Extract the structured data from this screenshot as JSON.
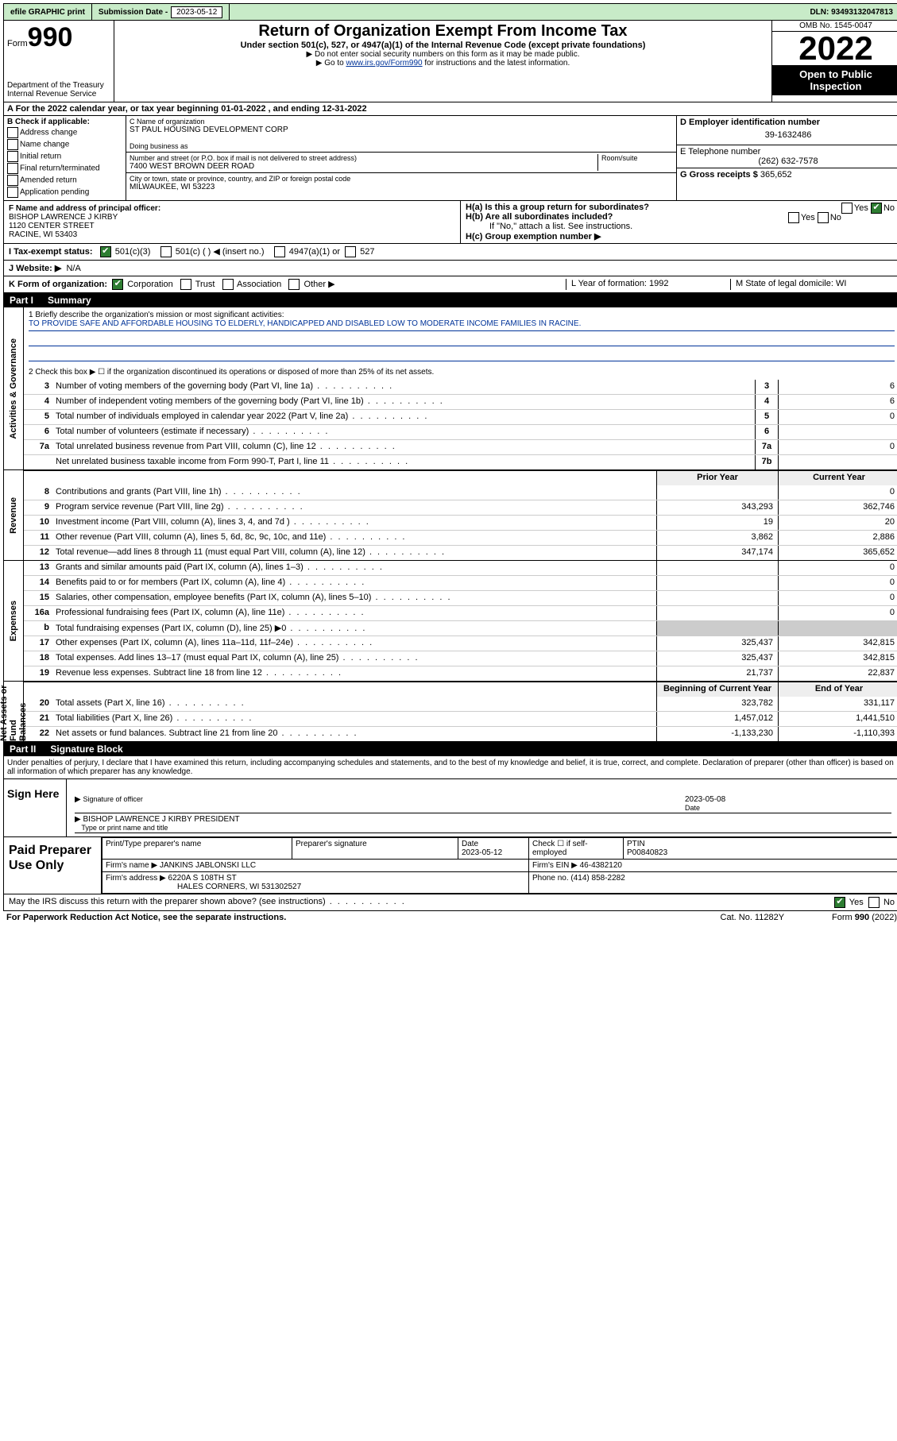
{
  "topbar": {
    "efile": "efile GRAPHIC print",
    "submission_label": "Submission Date - ",
    "submission_date": "2023-05-12",
    "dln_label": "DLN: ",
    "dln": "93493132047813"
  },
  "header": {
    "form_word": "Form",
    "form_num": "990",
    "title": "Return of Organization Exempt From Income Tax",
    "subtitle": "Under section 501(c), 527, or 4947(a)(1) of the Internal Revenue Code (except private foundations)",
    "note1": "▶ Do not enter social security numbers on this form as it may be made public.",
    "note2_pre": "▶ Go to ",
    "note2_link": "www.irs.gov/Form990",
    "note2_post": " for instructions and the latest information.",
    "dept": "Department of the Treasury",
    "irs": "Internal Revenue Service",
    "omb": "OMB No. 1545-0047",
    "year": "2022",
    "open": "Open to Public Inspection"
  },
  "rowA": {
    "label": "A For the 2022 calendar year, or tax year beginning ",
    "begin": "01-01-2022",
    "mid": "  , and ending ",
    "end": "12-31-2022"
  },
  "B": {
    "label": "B Check if applicable:",
    "items": [
      "Address change",
      "Name change",
      "Initial return",
      "Final return/terminated",
      "Amended return",
      "Application pending"
    ]
  },
  "C": {
    "name_label": "C Name of organization",
    "name": "ST PAUL HOUSING DEVELOPMENT CORP",
    "dba_label": "Doing business as",
    "street_label": "Number and street (or P.O. box if mail is not delivered to street address)",
    "room_label": "Room/suite",
    "street": "7400 WEST BROWN DEER ROAD",
    "city_label": "City or town, state or province, country, and ZIP or foreign postal code",
    "city": "MILWAUKEE, WI  53223"
  },
  "D": {
    "label": "D Employer identification number",
    "value": "39-1632486"
  },
  "E": {
    "label": "E Telephone number",
    "value": "(262) 632-7578"
  },
  "G": {
    "label": "G Gross receipts $",
    "value": "365,652"
  },
  "F": {
    "label": "F  Name and address of principal officer:",
    "name": "BISHOP LAWRENCE J KIRBY",
    "street": "1120 CENTER STREET",
    "city": "RACINE, WI  53403"
  },
  "H": {
    "a_label": "H(a)  Is this a group return for subordinates?",
    "a_yes": "Yes",
    "a_no": "No",
    "b_label": "H(b)  Are all subordinates included?",
    "b_note": "If \"No,\" attach a list. See instructions.",
    "c_label": "H(c)  Group exemption number ▶"
  },
  "I": {
    "label": "I   Tax-exempt status:",
    "opt1": "501(c)(3)",
    "opt2": "501(c) (   ) ◀ (insert no.)",
    "opt3": "4947(a)(1) or",
    "opt4": "527"
  },
  "J": {
    "label": "J   Website: ▶",
    "value": "N/A"
  },
  "K": {
    "label": "K Form of organization:",
    "opts": [
      "Corporation",
      "Trust",
      "Association",
      "Other ▶"
    ],
    "L": "L Year of formation: 1992",
    "M": "M State of legal domicile: WI"
  },
  "partI": {
    "tag": "Part I",
    "title": "Summary"
  },
  "summary": {
    "line1_label": "1  Briefly describe the organization's mission or most significant activities:",
    "mission": "TO PROVIDE SAFE AND AFFORDABLE HOUSING TO ELDERLY, HANDICAPPED AND DISABLED LOW TO MODERATE INCOME FAMILIES IN RACINE.",
    "line2": "2   Check this box ▶ ☐  if the organization discontinued its operations or disposed of more than 25% of its net assets.",
    "rows_gov": [
      {
        "n": "3",
        "d": "Number of voting members of the governing body (Part VI, line 1a)",
        "box": "3",
        "v": "6"
      },
      {
        "n": "4",
        "d": "Number of independent voting members of the governing body (Part VI, line 1b)",
        "box": "4",
        "v": "6"
      },
      {
        "n": "5",
        "d": "Total number of individuals employed in calendar year 2022 (Part V, line 2a)",
        "box": "5",
        "v": "0"
      },
      {
        "n": "6",
        "d": "Total number of volunteers (estimate if necessary)",
        "box": "6",
        "v": ""
      },
      {
        "n": "7a",
        "d": "Total unrelated business revenue from Part VIII, column (C), line 12",
        "box": "7a",
        "v": "0"
      },
      {
        "n": "",
        "d": "Net unrelated business taxable income from Form 990-T, Part I, line 11",
        "box": "7b",
        "v": ""
      }
    ],
    "col_hdr_prior": "Prior Year",
    "col_hdr_curr": "Current Year",
    "rows_rev": [
      {
        "n": "8",
        "d": "Contributions and grants (Part VIII, line 1h)",
        "p": "",
        "c": "0"
      },
      {
        "n": "9",
        "d": "Program service revenue (Part VIII, line 2g)",
        "p": "343,293",
        "c": "362,746"
      },
      {
        "n": "10",
        "d": "Investment income (Part VIII, column (A), lines 3, 4, and 7d )",
        "p": "19",
        "c": "20"
      },
      {
        "n": "11",
        "d": "Other revenue (Part VIII, column (A), lines 5, 6d, 8c, 9c, 10c, and 11e)",
        "p": "3,862",
        "c": "2,886"
      },
      {
        "n": "12",
        "d": "Total revenue—add lines 8 through 11 (must equal Part VIII, column (A), line 12)",
        "p": "347,174",
        "c": "365,652"
      }
    ],
    "rows_exp": [
      {
        "n": "13",
        "d": "Grants and similar amounts paid (Part IX, column (A), lines 1–3)",
        "p": "",
        "c": "0"
      },
      {
        "n": "14",
        "d": "Benefits paid to or for members (Part IX, column (A), line 4)",
        "p": "",
        "c": "0"
      },
      {
        "n": "15",
        "d": "Salaries, other compensation, employee benefits (Part IX, column (A), lines 5–10)",
        "p": "",
        "c": "0"
      },
      {
        "n": "16a",
        "d": "Professional fundraising fees (Part IX, column (A), line 11e)",
        "p": "",
        "c": "0"
      },
      {
        "n": "b",
        "d": "Total fundraising expenses (Part IX, column (D), line 25) ▶0",
        "p": "—",
        "c": "—"
      },
      {
        "n": "17",
        "d": "Other expenses (Part IX, column (A), lines 11a–11d, 11f–24e)",
        "p": "325,437",
        "c": "342,815"
      },
      {
        "n": "18",
        "d": "Total expenses. Add lines 13–17 (must equal Part IX, column (A), line 25)",
        "p": "325,437",
        "c": "342,815"
      },
      {
        "n": "19",
        "d": "Revenue less expenses. Subtract line 18 from line 12",
        "p": "21,737",
        "c": "22,837"
      }
    ],
    "col_hdr_begin": "Beginning of Current Year",
    "col_hdr_end": "End of Year",
    "rows_na": [
      {
        "n": "20",
        "d": "Total assets (Part X, line 16)",
        "p": "323,782",
        "c": "331,117"
      },
      {
        "n": "21",
        "d": "Total liabilities (Part X, line 26)",
        "p": "1,457,012",
        "c": "1,441,510"
      },
      {
        "n": "22",
        "d": "Net assets or fund balances. Subtract line 21 from line 20",
        "p": "-1,133,230",
        "c": "-1,110,393"
      }
    ],
    "side_gov": "Activities & Governance",
    "side_rev": "Revenue",
    "side_exp": "Expenses",
    "side_na": "Net Assets or Fund Balances"
  },
  "partII": {
    "tag": "Part II",
    "title": "Signature Block"
  },
  "penalties": "Under penalties of perjury, I declare that I have examined this return, including accompanying schedules and statements, and to the best of my knowledge and belief, it is true, correct, and complete. Declaration of preparer (other than officer) is based on all information of which preparer has any knowledge.",
  "sign": {
    "label": "Sign Here",
    "sig_officer": "Signature of officer",
    "date_label": "Date",
    "date": "2023-05-08",
    "officer": "BISHOP LAWRENCE J KIRBY  PRESIDENT",
    "type_label": "Type or print name and title"
  },
  "paid": {
    "label": "Paid Preparer Use Only",
    "hdr": [
      "Print/Type preparer's name",
      "Preparer's signature",
      "Date",
      "",
      "PTIN"
    ],
    "date": "2023-05-12",
    "check_label": "Check ☐ if self-employed",
    "ptin": "P00840823",
    "firm_name_label": "Firm's name   ▶",
    "firm_name": "JANKINS JABLONSKI LLC",
    "firm_ein_label": "Firm's EIN ▶",
    "firm_ein": "46-4382120",
    "firm_addr_label": "Firm's address ▶",
    "firm_addr1": "6220A S 108TH ST",
    "firm_addr2": "HALES CORNERS, WI  531302527",
    "phone_label": "Phone no.",
    "phone": "(414) 858-2282"
  },
  "footer": {
    "discuss": "May the IRS discuss this return with the preparer shown above? (see instructions)",
    "yes": "Yes",
    "no": "No",
    "paperwork": "For Paperwork Reduction Act Notice, see the separate instructions.",
    "cat": "Cat. No. 11282Y",
    "form": "Form 990 (2022)"
  },
  "colors": {
    "topbar_bg": "#c8ebc8",
    "link": "#003399",
    "checked_green": "#2e7d32"
  }
}
